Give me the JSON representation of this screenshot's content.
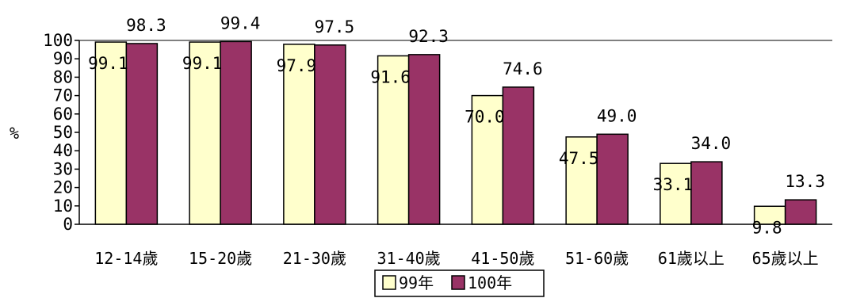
{
  "chart_data": {
    "type": "bar",
    "ylabel": "%",
    "ylim": [
      0,
      100
    ],
    "yticks": [
      "0",
      "10",
      "20",
      "30",
      "40",
      "50",
      "60",
      "70",
      "80",
      "90",
      "100"
    ],
    "grid": "none",
    "top_reference_line": true,
    "legend_position": "bottom-center",
    "categories": [
      "12-14歲",
      "15-20歲",
      "21-30歲",
      "31-40歲",
      "41-50歲",
      "51-60歲",
      "61歲以上",
      "65歲以上"
    ],
    "series": [
      {
        "name": "99年",
        "color": "#ffffcc",
        "values": [
          99.1,
          99.1,
          97.9,
          91.6,
          70.0,
          47.5,
          33.1,
          9.8
        ],
        "labels": [
          "99.1",
          "99.1",
          "97.9",
          "91.6",
          "70.0",
          "47.5",
          "33.1",
          "9.8"
        ]
      },
      {
        "name": "100年",
        "color": "#993366",
        "values": [
          98.3,
          99.4,
          97.5,
          92.3,
          74.6,
          49.0,
          34.0,
          13.3
        ],
        "labels": [
          "98.3",
          "99.4",
          "97.5",
          "92.3",
          "74.6",
          "49.0",
          "34.0",
          "13.3"
        ]
      }
    ]
  }
}
